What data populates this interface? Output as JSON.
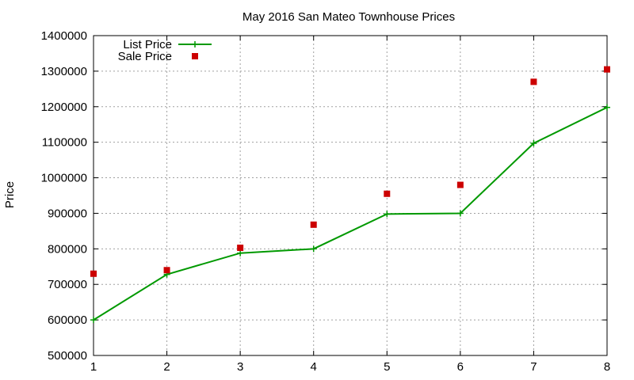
{
  "chart_data": {
    "type": "line",
    "title": "May 2016 San Mateo Townhouse Prices",
    "xlabel": "",
    "ylabel": "Price",
    "x": [
      1,
      2,
      3,
      4,
      5,
      6,
      7,
      8
    ],
    "xlim": [
      1,
      8
    ],
    "ylim": [
      500000,
      1400000
    ],
    "xticks": [
      "1",
      "2",
      "3",
      "4",
      "5",
      "6",
      "7",
      "8"
    ],
    "yticks": [
      "500000",
      "600000",
      "700000",
      "800000",
      "900000",
      "1000000",
      "1100000",
      "1200000",
      "1300000",
      "1400000"
    ],
    "grid": true,
    "legend_position": "top-left",
    "series": [
      {
        "name": "List Price",
        "style": "line-with-plus-markers",
        "color": "#009900",
        "values": [
          600000,
          728000,
          788000,
          800000,
          898000,
          900000,
          1097000,
          1198000
        ]
      },
      {
        "name": "Sale Price",
        "style": "square-markers",
        "color": "#cc0000",
        "values": [
          730000,
          740000,
          803000,
          868000,
          955000,
          980000,
          1270000,
          1305000
        ]
      }
    ]
  }
}
